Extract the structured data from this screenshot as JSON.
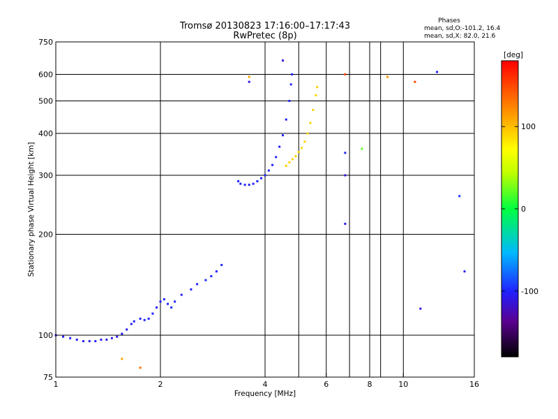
{
  "title_line1": "Tromsø 20130823 17:16:00–17:17:43",
  "title_line2": "RwPretec (8p)",
  "phases": {
    "heading": "Phases",
    "line_o": "mean, sd,O:-101.2, 16.4",
    "line_x": "mean, sd,X:  82.0, 21.6"
  },
  "colorbar": {
    "label": "[deg]",
    "ticks": [
      "100",
      "0",
      "-100"
    ],
    "tick_values": [
      100,
      0,
      -100
    ],
    "range": [
      -180,
      180
    ]
  },
  "chart_data": {
    "type": "scatter",
    "xlabel": "Frequency [MHz]",
    "ylabel": "Stationary phase Virtual Height [km]",
    "xscale": "log",
    "yscale": "log",
    "xlim": [
      1,
      16
    ],
    "ylim": [
      75,
      750
    ],
    "x_ticks": [
      "1",
      "2",
      "4",
      "6",
      "8",
      "10",
      "16"
    ],
    "x_tick_values": [
      1,
      2,
      4,
      6,
      8,
      10,
      16
    ],
    "y_ticks": [
      "75",
      "100",
      "200",
      "300",
      "400",
      "500",
      "600",
      "750"
    ],
    "y_tick_values": [
      75,
      100,
      200,
      300,
      400,
      500,
      600,
      750
    ],
    "x_gridlines": [
      2,
      4,
      6,
      8,
      10
    ],
    "y_gridlines": [
      100,
      200,
      300,
      400,
      500,
      600
    ],
    "extra_x_gridlines": [
      5,
      7,
      8.6
    ],
    "color_meaning": "phase in degrees",
    "traces": [
      {
        "phase": -105,
        "points": [
          [
            1.0,
            100
          ],
          [
            1.05,
            99
          ],
          [
            1.1,
            98
          ],
          [
            1.15,
            97
          ],
          [
            1.2,
            96
          ],
          [
            1.25,
            96
          ],
          [
            1.3,
            96
          ],
          [
            1.35,
            97
          ],
          [
            1.4,
            97
          ],
          [
            1.45,
            98
          ],
          [
            1.5,
            99
          ],
          [
            1.55,
            101
          ],
          [
            1.6,
            104
          ],
          [
            1.65,
            108
          ],
          [
            1.68,
            110
          ]
        ]
      },
      {
        "phase": -100,
        "points": [
          [
            1.75,
            112
          ],
          [
            1.8,
            111
          ],
          [
            1.85,
            112
          ],
          [
            1.9,
            116
          ],
          [
            1.95,
            121
          ],
          [
            2.0,
            126
          ],
          [
            2.05,
            128
          ],
          [
            2.1,
            124
          ],
          [
            2.15,
            121
          ],
          [
            2.2,
            126
          ],
          [
            2.3,
            132
          ],
          [
            2.45,
            137
          ],
          [
            2.55,
            142
          ],
          [
            2.7,
            146
          ],
          [
            2.8,
            150
          ],
          [
            2.9,
            155
          ],
          [
            3.0,
            162
          ]
        ]
      },
      {
        "phase": -100,
        "points": [
          [
            3.35,
            288
          ],
          [
            3.4,
            283
          ],
          [
            3.5,
            281
          ],
          [
            3.6,
            281
          ],
          [
            3.7,
            283
          ],
          [
            3.8,
            288
          ],
          [
            3.9,
            294
          ],
          [
            4.0,
            300
          ],
          [
            4.1,
            310
          ],
          [
            4.2,
            322
          ],
          [
            4.3,
            340
          ],
          [
            4.4,
            365
          ],
          [
            4.5,
            395
          ],
          [
            4.6,
            440
          ],
          [
            4.7,
            500
          ],
          [
            4.75,
            560
          ],
          [
            4.78,
            600
          ]
        ]
      },
      {
        "phase": 90,
        "points": [
          [
            4.6,
            320
          ],
          [
            4.7,
            328
          ],
          [
            4.8,
            335
          ],
          [
            4.9,
            342
          ],
          [
            5.0,
            352
          ],
          [
            5.1,
            362
          ],
          [
            5.2,
            378
          ],
          [
            5.3,
            400
          ],
          [
            5.4,
            430
          ],
          [
            5.5,
            470
          ],
          [
            5.6,
            520
          ],
          [
            5.65,
            550
          ]
        ]
      }
    ],
    "scattered_points": [
      {
        "x": 1.55,
        "y": 85,
        "phase": 110
      },
      {
        "x": 1.75,
        "y": 80,
        "phase": 130
      },
      {
        "x": 3.6,
        "y": 590,
        "phase": 110
      },
      {
        "x": 3.6,
        "y": 570,
        "phase": -110
      },
      {
        "x": 4.5,
        "y": 660,
        "phase": -115
      },
      {
        "x": 6.8,
        "y": 600,
        "phase": 150
      },
      {
        "x": 6.8,
        "y": 350,
        "phase": -100
      },
      {
        "x": 6.8,
        "y": 300,
        "phase": -110
      },
      {
        "x": 6.8,
        "y": 215,
        "phase": -105
      },
      {
        "x": 7.6,
        "y": 360,
        "phase": 20
      },
      {
        "x": 9.0,
        "y": 590,
        "phase": 120
      },
      {
        "x": 10.8,
        "y": 570,
        "phase": 150
      },
      {
        "x": 12.5,
        "y": 610,
        "phase": -100
      },
      {
        "x": 11.2,
        "y": 120,
        "phase": -110
      },
      {
        "x": 15.0,
        "y": 155,
        "phase": -105
      },
      {
        "x": 14.5,
        "y": 260,
        "phase": -95
      }
    ]
  }
}
